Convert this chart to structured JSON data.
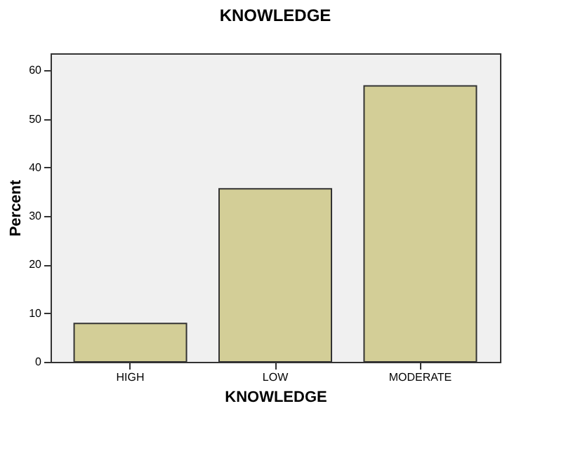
{
  "chart_data": {
    "type": "bar",
    "title": "KNOWLEDGE",
    "xlabel": "KNOWLEDGE",
    "ylabel": "Percent",
    "categories": [
      "HIGH",
      "LOW",
      "MODERATE"
    ],
    "values": [
      7.9,
      35.6,
      56.8
    ],
    "color": "#d3ce97",
    "ylim": [
      0,
      63.5
    ],
    "yticks": [
      0,
      10,
      20,
      30,
      40,
      50,
      60
    ],
    "grid": false
  }
}
